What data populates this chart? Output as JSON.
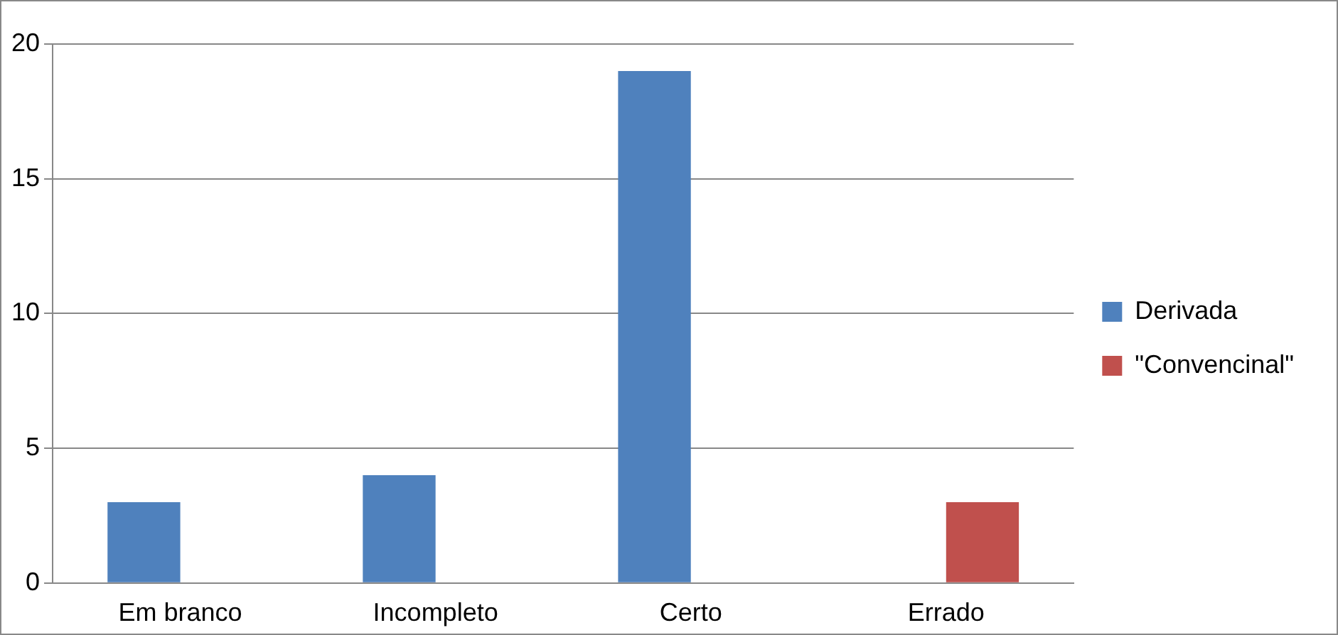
{
  "chart_data": {
    "type": "bar",
    "categories": [
      "Em branco",
      "Incompleto",
      "Certo",
      "Errado"
    ],
    "series": [
      {
        "name": "Derivada",
        "color": "#4f81bd",
        "values": [
          3,
          4,
          19,
          0
        ]
      },
      {
        "name": "\"Convencinal\"",
        "color": "#c0504d",
        "values": [
          0,
          0,
          0,
          3
        ]
      }
    ],
    "ylim": [
      0,
      20
    ],
    "yticks": [
      0,
      5,
      10,
      15,
      20
    ],
    "grid": "y",
    "legend": "right"
  }
}
